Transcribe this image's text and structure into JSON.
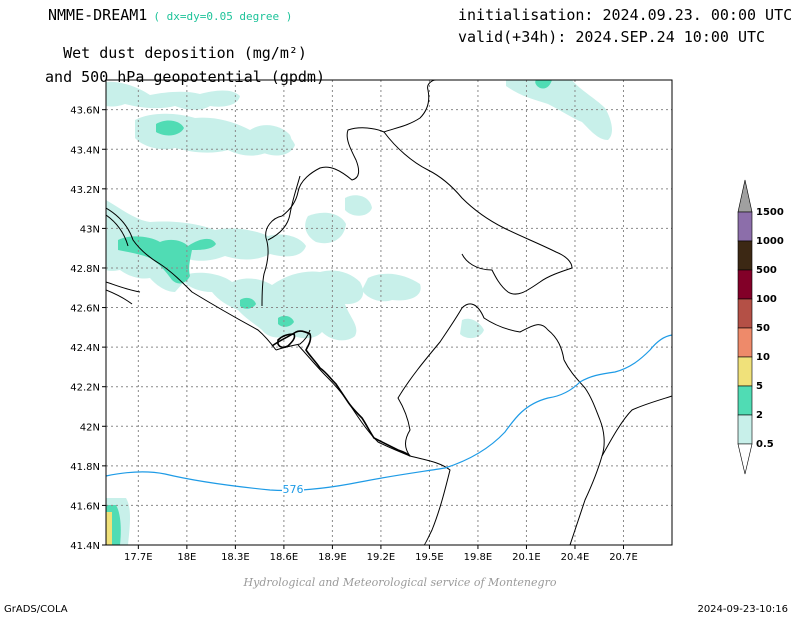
{
  "header": {
    "model": "NMME-DREAM1",
    "resolution": "( dx=dy=0.05 degree )",
    "title_line1": "Wet dust deposition (mg/m²)",
    "title_line2": "and 500 hPa geopotential (gpdm)",
    "initialisation": "initialisation: 2024.09.23. 00:00 UTC",
    "valid": "valid(+34h): 2024.SEP.24 10:00 UTC"
  },
  "footer": {
    "software": "GrADS/COLA",
    "timestamp": "2024-09-23-10:16",
    "credit": "Hydrological and Meteorological service of Montenegro"
  },
  "map": {
    "lon_range": [
      17.5,
      21.0
    ],
    "lat_range": [
      41.4,
      43.75
    ],
    "lon_ticks": [
      "17.7E",
      "18E",
      "18.3E",
      "18.6E",
      "18.9E",
      "19.2E",
      "19.5E",
      "19.8E",
      "20.1E",
      "20.4E",
      "20.7E"
    ],
    "lat_ticks": [
      "41.4N",
      "41.6N",
      "41.8N",
      "42N",
      "42.2N",
      "42.4N",
      "42.6N",
      "42.8N",
      "43N",
      "43.2N",
      "43.4N",
      "43.6N"
    ],
    "contour_label": "576",
    "contour_color": "#1e9be6",
    "colors": {
      "c0_5": "#c8f0ea",
      "c2": "#50dcb4",
      "c5": "#f0e17a",
      "c10": "#ee8a6a",
      "c50": "#b45046",
      "c100": "#820028",
      "c500": "#3c2814",
      "c1000": "#8c6eaa",
      "c1500": "#a0a0a0"
    }
  },
  "legend": {
    "labels": [
      "1500",
      "1000",
      "500",
      "100",
      "50",
      "10",
      "5",
      "2",
      "0.5"
    ]
  }
}
